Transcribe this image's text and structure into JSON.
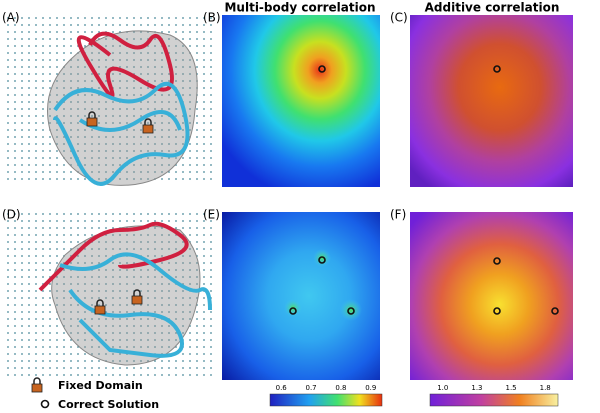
{
  "column_titles": [
    "Multi-body correlation",
    "Additive correlation"
  ],
  "panel_labels": [
    "(A)",
    "(B)",
    "(C)",
    "(D)",
    "(E)",
    "(F)"
  ],
  "legend": {
    "fixed_domain": "Fixed Domain",
    "correct_solution": "Correct Solution"
  },
  "colorbars": [
    {
      "ticks": [
        "0.6",
        "0.7",
        "0.8",
        "0.9"
      ]
    },
    {
      "ticks": [
        "1.0",
        "1.3",
        "1.5",
        "1.8"
      ]
    }
  ]
}
